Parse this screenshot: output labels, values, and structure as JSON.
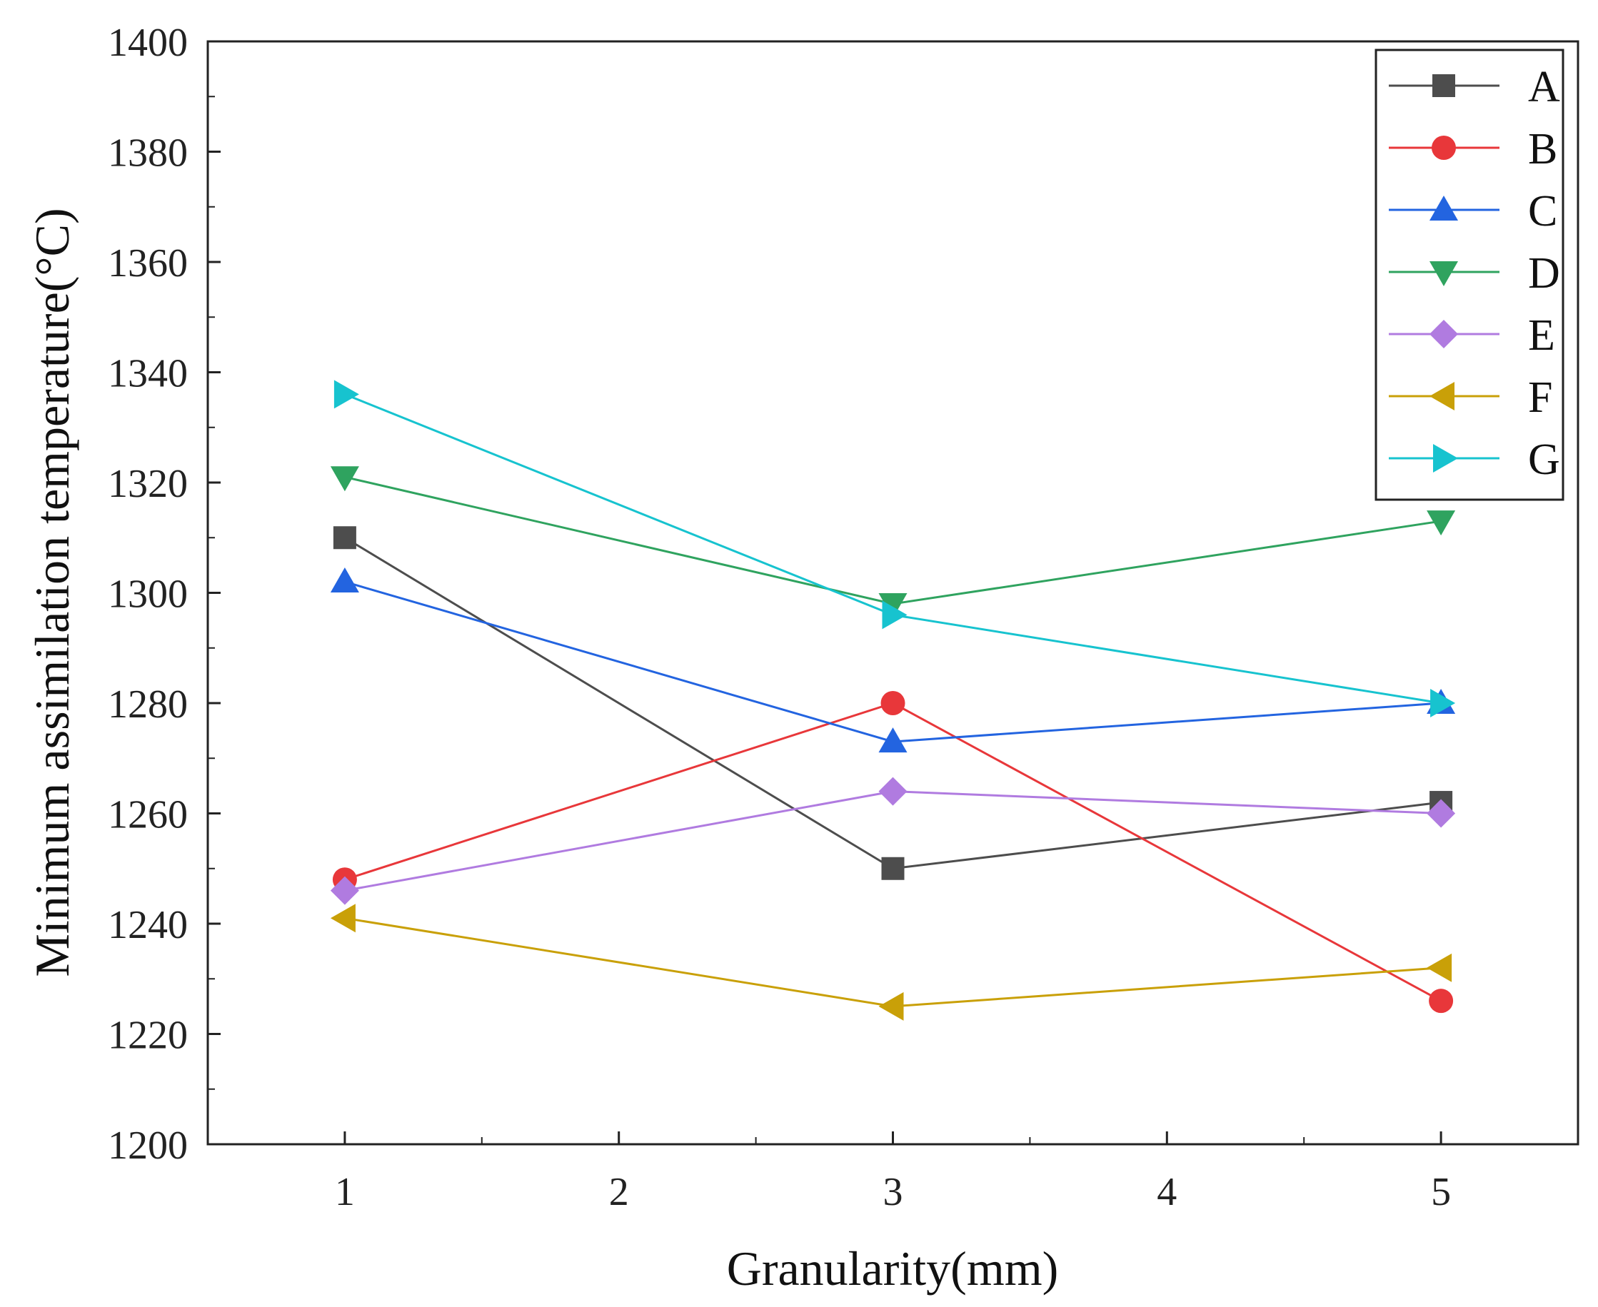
{
  "chart_data": {
    "type": "line",
    "title": "",
    "xlabel": "Granularity(mm)",
    "ylabel": "Minimum assimilation temperature(°C)",
    "x": [
      1,
      3,
      5
    ],
    "xlim": [
      0.5,
      5.5
    ],
    "ylim": [
      1200,
      1400
    ],
    "xticks": [
      "1",
      "2",
      "3",
      "4",
      "5"
    ],
    "yticks": [
      "1200",
      "1220",
      "1240",
      "1260",
      "1280",
      "1300",
      "1320",
      "1340",
      "1360",
      "1380",
      "1400"
    ],
    "grid": false,
    "legend_position": "top-right",
    "series": [
      {
        "name": "A",
        "color": "#4d4d4d",
        "marker": "square",
        "values": [
          1310,
          1250,
          1262
        ]
      },
      {
        "name": "B",
        "color": "#e8373a",
        "marker": "circle",
        "values": [
          1248,
          1280,
          1226
        ]
      },
      {
        "name": "C",
        "color": "#2364e0",
        "marker": "triangle-up",
        "values": [
          1302,
          1273,
          1280
        ]
      },
      {
        "name": "D",
        "color": "#2fa35f",
        "marker": "triangle-down",
        "values": [
          1321,
          1298,
          1313
        ]
      },
      {
        "name": "E",
        "color": "#b07be0",
        "marker": "diamond",
        "values": [
          1246,
          1264,
          1260
        ]
      },
      {
        "name": "F",
        "color": "#c9a008",
        "marker": "triangle-left",
        "values": [
          1241,
          1225,
          1232
        ]
      },
      {
        "name": "G",
        "color": "#17c3cf",
        "marker": "triangle-right",
        "values": [
          1336,
          1296,
          1280
        ]
      }
    ]
  }
}
